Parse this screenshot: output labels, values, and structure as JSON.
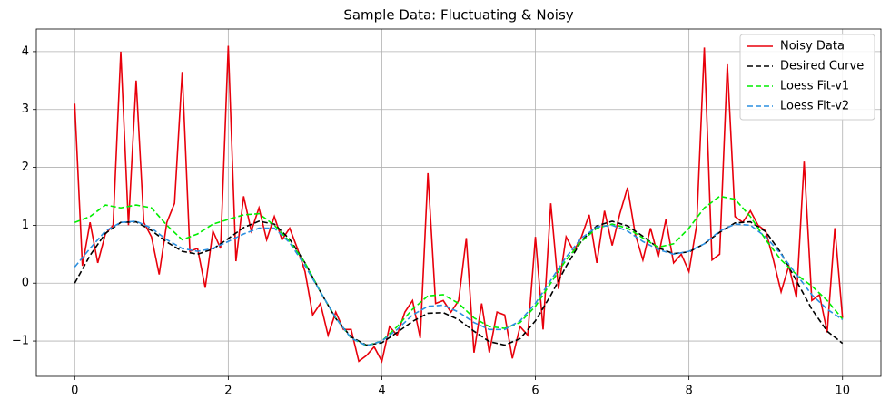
{
  "chart_data": {
    "type": "line",
    "title": "Sample Data: Fluctuating & Noisy",
    "xlim": [
      -0.5,
      10.5
    ],
    "ylim": [
      -1.61,
      4.39
    ],
    "xticks": [
      0,
      2,
      4,
      6,
      8,
      10
    ],
    "yticks": [
      {
        "value": -1,
        "label": "−1"
      },
      0,
      1,
      2,
      3,
      4
    ],
    "grid": true,
    "legend": "upper right",
    "series": [
      {
        "name": "Noisy Data",
        "color": "#e8000b",
        "linestyle": "solid",
        "x": [
          0,
          0.1,
          0.2,
          0.3,
          0.4,
          0.5,
          0.6,
          0.7,
          0.8,
          0.9,
          1,
          1.1,
          1.2,
          1.3,
          1.4,
          1.5,
          1.6,
          1.7,
          1.8,
          1.9,
          2,
          2.1,
          2.2,
          2.3,
          2.4,
          2.5,
          2.6,
          2.7,
          2.8,
          2.9,
          3,
          3.1,
          3.2,
          3.3,
          3.4,
          3.5,
          3.6,
          3.7,
          3.8,
          3.9,
          4,
          4.1,
          4.2,
          4.3,
          4.4,
          4.5,
          4.6,
          4.7,
          4.8,
          4.9,
          5,
          5.1,
          5.2,
          5.3,
          5.4,
          5.5,
          5.6,
          5.7,
          5.8,
          5.9,
          6,
          6.1,
          6.2,
          6.3,
          6.4,
          6.5,
          6.6,
          6.7,
          6.8,
          6.9,
          7,
          7.1,
          7.2,
          7.3,
          7.4,
          7.5,
          7.6,
          7.7,
          7.8,
          7.9,
          8,
          8.1,
          8.2,
          8.3,
          8.4,
          8.5,
          8.6,
          8.7,
          8.8,
          8.9,
          9,
          9.1,
          9.2,
          9.3,
          9.4,
          9.5,
          9.6,
          9.7,
          9.8,
          9.9,
          10
        ],
        "values": [
          3.1,
          0.3,
          1.05,
          0.35,
          0.85,
          1.0,
          4.0,
          1.0,
          3.5,
          1.05,
          0.8,
          0.15,
          1.05,
          1.38,
          3.65,
          0.55,
          0.6,
          -0.08,
          0.9,
          0.6,
          4.1,
          0.38,
          1.5,
          0.9,
          1.3,
          0.75,
          1.15,
          0.75,
          0.95,
          0.6,
          0.2,
          -0.55,
          -0.35,
          -0.9,
          -0.5,
          -0.8,
          -0.8,
          -1.35,
          -1.25,
          -1.1,
          -1.35,
          -0.75,
          -0.9,
          -0.5,
          -0.3,
          -0.95,
          1.9,
          -0.35,
          -0.3,
          -0.5,
          -0.3,
          0.78,
          -1.2,
          -0.35,
          -1.2,
          -0.5,
          -0.55,
          -1.3,
          -0.75,
          -0.9,
          0.8,
          -0.8,
          1.38,
          -0.1,
          0.8,
          0.55,
          0.8,
          1.18,
          0.35,
          1.25,
          0.65,
          1.2,
          1.65,
          0.85,
          0.4,
          0.95,
          0.45,
          1.1,
          0.35,
          0.5,
          0.2,
          1.0,
          4.07,
          0.4,
          0.5,
          3.78,
          1.15,
          1.05,
          1.25,
          1.0,
          0.9,
          0.4,
          -0.15,
          0.3,
          -0.25,
          2.1,
          -0.3,
          -0.2,
          -0.85,
          0.95,
          -0.6
        ]
      },
      {
        "name": "Desired Curve",
        "color": "#000000",
        "linestyle": "dashed",
        "x": [
          0,
          0.2,
          0.4,
          0.6,
          0.8,
          1,
          1.2,
          1.4,
          1.6,
          1.8,
          2,
          2.2,
          2.4,
          2.6,
          2.8,
          3,
          3.2,
          3.4,
          3.6,
          3.8,
          4,
          4.2,
          4.4,
          4.6,
          4.8,
          5,
          5.2,
          5.4,
          5.6,
          5.8,
          6,
          6.2,
          6.4,
          6.6,
          6.8,
          7,
          7.2,
          7.4,
          7.6,
          7.8,
          8,
          8.2,
          8.4,
          8.6,
          8.8,
          9,
          9.2,
          9.4,
          9.6,
          9.8,
          10
        ],
        "values": [
          0,
          0.48,
          0.86,
          1.05,
          1.06,
          0.91,
          0.71,
          0.55,
          0.5,
          0.59,
          0.77,
          0.96,
          1.07,
          1.02,
          0.76,
          0.35,
          -0.15,
          -0.61,
          -0.93,
          -1.07,
          -1.03,
          -0.85,
          -0.66,
          -0.52,
          -0.51,
          -0.63,
          -0.83,
          -1.01,
          -1.07,
          -0.96,
          -0.65,
          -0.21,
          0.29,
          0.73,
          0.99,
          1.07,
          0.99,
          0.81,
          0.61,
          0.51,
          0.54,
          0.68,
          0.88,
          1.04,
          1.06,
          0.89,
          0.52,
          0.04,
          -0.45,
          -0.83,
          -1.04
        ]
      },
      {
        "name": "Loess Fit-v1",
        "color": "#00ee00",
        "linestyle": "dashed",
        "x": [
          0,
          0.2,
          0.4,
          0.6,
          0.8,
          1,
          1.2,
          1.4,
          1.6,
          1.8,
          2,
          2.2,
          2.4,
          2.6,
          2.8,
          3,
          3.2,
          3.4,
          3.6,
          3.8,
          4,
          4.2,
          4.4,
          4.6,
          4.8,
          5,
          5.2,
          5.4,
          5.6,
          5.8,
          6,
          6.2,
          6.4,
          6.6,
          6.8,
          7,
          7.2,
          7.4,
          7.6,
          7.8,
          8,
          8.2,
          8.4,
          8.6,
          8.8,
          9,
          9.2,
          9.4,
          9.6,
          9.8,
          10
        ],
        "values": [
          1.05,
          1.15,
          1.35,
          1.3,
          1.35,
          1.3,
          1.0,
          0.75,
          0.85,
          1.02,
          1.1,
          1.18,
          1.2,
          1.0,
          0.72,
          0.35,
          -0.15,
          -0.6,
          -0.95,
          -1.08,
          -1.0,
          -0.75,
          -0.45,
          -0.22,
          -0.2,
          -0.35,
          -0.6,
          -0.75,
          -0.78,
          -0.68,
          -0.4,
          0.0,
          0.4,
          0.72,
          0.95,
          1.02,
          0.95,
          0.78,
          0.62,
          0.68,
          0.95,
          1.3,
          1.5,
          1.45,
          1.15,
          0.75,
          0.4,
          0.15,
          -0.05,
          -0.3,
          -0.62
        ]
      },
      {
        "name": "Loess Fit-v2",
        "color": "#2b8fe0",
        "linestyle": "dashed",
        "x": [
          0,
          0.2,
          0.4,
          0.6,
          0.8,
          1,
          1.2,
          1.4,
          1.6,
          1.8,
          2,
          2.2,
          2.4,
          2.6,
          2.8,
          3,
          3.2,
          3.4,
          3.6,
          3.8,
          4,
          4.2,
          4.4,
          4.6,
          4.8,
          5,
          5.2,
          5.4,
          5.6,
          5.8,
          6,
          6.2,
          6.4,
          6.6,
          6.8,
          7,
          7.2,
          7.4,
          7.6,
          7.8,
          8,
          8.2,
          8.4,
          8.6,
          8.8,
          9,
          9.2,
          9.4,
          9.6,
          9.8,
          10
        ],
        "values": [
          0.28,
          0.6,
          0.9,
          1.05,
          1.07,
          0.95,
          0.75,
          0.6,
          0.55,
          0.6,
          0.72,
          0.85,
          0.95,
          0.95,
          0.7,
          0.3,
          -0.15,
          -0.6,
          -0.95,
          -1.08,
          -1.0,
          -0.8,
          -0.55,
          -0.4,
          -0.38,
          -0.5,
          -0.68,
          -0.8,
          -0.8,
          -0.65,
          -0.35,
          0.05,
          0.45,
          0.78,
          0.97,
          1.0,
          0.9,
          0.72,
          0.58,
          0.5,
          0.55,
          0.68,
          0.9,
          1.02,
          1.0,
          0.8,
          0.5,
          0.15,
          -0.2,
          -0.45,
          -0.63
        ]
      }
    ]
  }
}
